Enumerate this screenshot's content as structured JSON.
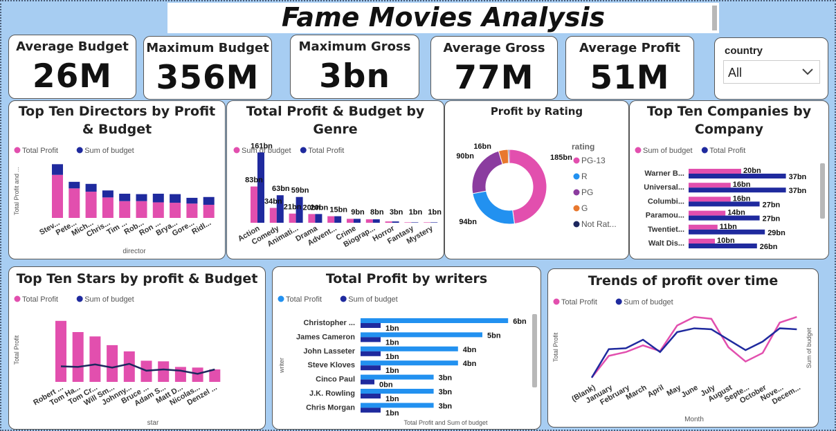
{
  "title": "Fame Movies Analysis",
  "kpis": [
    {
      "label": "Average Budget",
      "value": "26M"
    },
    {
      "label": "Maximum Budget",
      "value": "356M"
    },
    {
      "label": "Maximum Gross",
      "value": "3bn"
    },
    {
      "label": "Average Gross",
      "value": "77M"
    },
    {
      "label": "Average Profit",
      "value": "51M"
    }
  ],
  "slicer": {
    "label": "country",
    "value": "All",
    "icon": "chevron-down-icon"
  },
  "colors": {
    "pink": "#e24fae",
    "navy": "#1f2a9e",
    "blue": "#2291f0",
    "purple": "#8b3c9f",
    "orange": "#e8782e",
    "darknavy": "#1d275e"
  },
  "chart_data": [
    {
      "id": "directors",
      "type": "bar",
      "title": "Top Ten Directors by Profit & Budget",
      "legend": [
        "Total Profit",
        "Sum of budget"
      ],
      "xlabel": "director",
      "ylabel": "Total Profit and ...",
      "categories": [
        "Stev...",
        "Pete...",
        "Mich...",
        "Chris...",
        "Tim ...",
        "Rob...",
        "Ron ...",
        "Brya...",
        "Gore...",
        "Ridl..."
      ],
      "series": [
        {
          "name": "Total Profit",
          "values": [
            10.5,
            7.2,
            6.4,
            5.0,
            4.1,
            4.1,
            3.8,
            3.7,
            3.5,
            3.2
          ]
        },
        {
          "name": "Sum of budget",
          "values": [
            2.6,
            1.6,
            1.9,
            1.7,
            1.8,
            1.7,
            2.1,
            2.1,
            1.4,
            1.9
          ]
        }
      ],
      "ylim": [
        0,
        14
      ]
    },
    {
      "id": "genre",
      "type": "bar",
      "title": "Total Profit & Budget by Genre",
      "legend": [
        "Sum of budget",
        "Total Profit"
      ],
      "categories": [
        "Action",
        "Comedy",
        "Animati...",
        "Drama",
        "Advent...",
        "Crime",
        "Biograp...",
        "Horror",
        "Fantasy",
        "Mystery"
      ],
      "series": [
        {
          "name": "Sum of budget",
          "values": [
            83,
            34,
            21,
            20,
            15,
            9,
            8,
            3,
            1,
            1
          ],
          "labels": [
            "83bn",
            "34bn",
            "21bn",
            "20bn",
            "",
            "",
            "",
            "",
            "",
            ""
          ]
        },
        {
          "name": "Total Profit",
          "values": [
            161,
            63,
            59,
            20,
            15,
            9,
            8,
            3,
            1,
            1
          ],
          "labels": [
            "161bn",
            "63bn",
            "59bn",
            "20bn",
            "15bn",
            "9bn",
            "8bn",
            "3bn",
            "1bn",
            "1bn"
          ]
        }
      ],
      "ylim": [
        0,
        190
      ]
    },
    {
      "id": "rating",
      "type": "pie",
      "title": "Profit by Rating",
      "legend_title": "rating",
      "slices": [
        {
          "name": "PG-13",
          "value": 185,
          "label": "185bn"
        },
        {
          "name": "R",
          "value": 94,
          "label": "94bn"
        },
        {
          "name": "PG",
          "value": 90,
          "label": "90bn"
        },
        {
          "name": "G",
          "value": 16,
          "label": "16bn"
        },
        {
          "name": "Not Rat...",
          "value": 2,
          "label": ""
        }
      ]
    },
    {
      "id": "companies",
      "type": "bar",
      "title": "Top Ten Companies by Company",
      "legend": [
        "Sum of budget",
        "Total Profit"
      ],
      "categories": [
        "Warner B...",
        "Universal...",
        "Columbi...",
        "Paramou...",
        "Twentiet...",
        "Walt Dis..."
      ],
      "series": [
        {
          "name": "Sum of budget",
          "values": [
            20,
            16,
            16,
            14,
            11,
            10
          ],
          "labels": [
            "20bn",
            "16bn",
            "16bn",
            "14bn",
            "11bn",
            "10bn"
          ]
        },
        {
          "name": "Total Profit",
          "values": [
            37,
            37,
            27,
            27,
            29,
            26
          ],
          "labels": [
            "37bn",
            "37bn",
            "27bn",
            "27bn",
            "29bn",
            "26bn"
          ]
        }
      ],
      "xlim": [
        0,
        40
      ]
    },
    {
      "id": "stars",
      "type": "bar",
      "title": "Top Ten Stars by profit & Budget",
      "legend": [
        "Total Profit",
        "Sum of budget"
      ],
      "xlabel": "star",
      "ylabel": "Total Profit",
      "categories": [
        "Robert ...",
        "Tom Ha...",
        "Tom Cr...",
        "Will Sm...",
        "Johnny...",
        "Bruce ...",
        "Adam S...",
        "Matt D...",
        "Nicolas...",
        "Denzel ..."
      ],
      "series": [
        {
          "name": "Total Profit",
          "values": [
            9.8,
            8.0,
            7.3,
            5.9,
            4.9,
            3.4,
            3.3,
            2.4,
            2.3,
            2.0
          ]
        },
        {
          "name": "Sum of budget",
          "values": [
            2.5,
            2.4,
            2.8,
            2.3,
            2.9,
            1.8,
            2.0,
            1.8,
            1.3,
            2.0
          ]
        }
      ],
      "ylim": [
        0,
        12
      ]
    },
    {
      "id": "writers",
      "type": "bar",
      "title": "Total Profit by writers",
      "legend": [
        "Total Profit",
        "Sum of budget"
      ],
      "xlabel": "Total Profit and Sum of budget",
      "ylabel": "writer",
      "categories": [
        "Christopher ...",
        "James Cameron",
        "John Lasseter",
        "Steve Kloves",
        "Cinco Paul",
        "J.K. Rowling",
        "Chris Morgan"
      ],
      "series": [
        {
          "name": "Total Profit",
          "values": [
            6,
            5,
            4,
            4,
            3,
            3,
            3
          ],
          "labels": [
            "6bn",
            "5bn",
            "4bn",
            "4bn",
            "3bn",
            "3bn",
            "3bn"
          ]
        },
        {
          "name": "Sum of budget",
          "values": [
            1,
            1,
            1,
            1,
            0,
            1,
            1
          ],
          "labels": [
            "1bn",
            "1bn",
            "1bn",
            "1bn",
            "0bn",
            "1bn",
            "1bn"
          ]
        }
      ]
    },
    {
      "id": "trends",
      "type": "line",
      "title": "Trends of profit over time",
      "legend": [
        "Total Profit",
        "Sum of budget"
      ],
      "xlabel": "Month",
      "ylabel": "Total Profit",
      "y2label": "Sum of budget",
      "categories": [
        "(Blank)",
        "January",
        "February",
        "March",
        "April",
        "May",
        "June",
        "July",
        "August",
        "Septe...",
        "October",
        "Nove...",
        "Decem..."
      ],
      "series": [
        {
          "name": "Total Profit",
          "values": [
            0.3,
            2.6,
            3.0,
            3.7,
            3.1,
            5.8,
            6.7,
            6.5,
            3.5,
            2.0,
            2.9,
            6.1,
            6.7
          ]
        },
        {
          "name": "Sum of budget",
          "values": [
            0.3,
            3.3,
            3.4,
            4.3,
            3.0,
            5.1,
            5.5,
            5.4,
            4.3,
            3.2,
            4.1,
            5.5,
            5.4
          ]
        }
      ]
    }
  ]
}
